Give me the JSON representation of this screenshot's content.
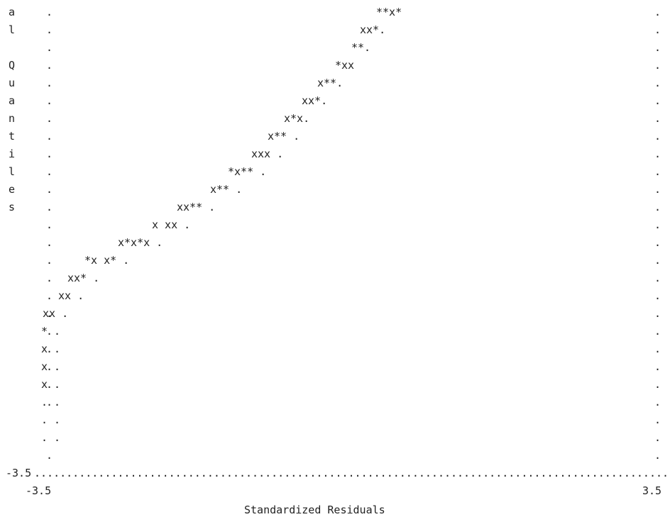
{
  "chart_data": {
    "type": "scatter",
    "style": "ascii-printer-plot",
    "xlabel": "Standardized Residuals",
    "ylabel": "al Quantiles",
    "x_ticks": [
      "-3.5",
      "3.5"
    ],
    "y_ticks": [
      "-3.5"
    ],
    "xlim": [
      -3.5,
      3.5
    ],
    "ylim": [
      -3.5,
      3.5
    ],
    "grid": false,
    "text_rows": [
      "**x*",
      "xx*.",
      "**.",
      "*xx",
      "x**.",
      "xx*.",
      "x*x.",
      "x** .",
      "xxx .",
      "*x** .",
      "x** .",
      "xx** .",
      "x xx .",
      "x*x*x .",
      "*x x* .",
      "xx* .",
      "xx .",
      "xx .",
      "* .",
      "x .",
      "x .",
      "x .",
      ". .",
      ". .",
      ". ."
    ],
    "series": [
      {
        "symbol": "x",
        "values": [
          [
            -2.95,
            -2.0
          ],
          [
            -2.95,
            -1.85
          ],
          [
            -2.95,
            -1.7
          ],
          [
            -2.92,
            -1.45
          ],
          [
            -2.86,
            -1.45
          ],
          [
            -2.65,
            -1.15
          ],
          [
            -2.57,
            -1.15
          ],
          [
            -2.55,
            -0.95
          ],
          [
            -2.48,
            -0.95
          ],
          [
            -2.38,
            -0.8
          ],
          [
            -2.15,
            -0.8
          ],
          [
            -2.08,
            -0.65
          ],
          [
            -1.93,
            -0.65
          ],
          [
            -1.8,
            -0.5
          ],
          [
            -1.6,
            -0.5
          ],
          [
            -1.5,
            -0.35
          ],
          [
            -1.45,
            -0.35
          ],
          [
            -1.28,
            -0.2
          ],
          [
            -1.15,
            -0.05
          ],
          [
            -1.0,
            0.1
          ],
          [
            -0.92,
            0.1
          ],
          [
            -0.86,
            0.1
          ],
          [
            -0.85,
            0.25
          ],
          [
            -0.7,
            0.4
          ],
          [
            -0.5,
            0.55
          ],
          [
            -0.45,
            0.7
          ],
          [
            -0.38,
            0.7
          ],
          [
            -0.3,
            1.0
          ],
          [
            -0.25,
            1.0
          ],
          [
            -0.14,
            1.15
          ],
          [
            -0.08,
            1.3
          ],
          [
            -0.02,
            1.3
          ],
          [
            0.05,
            1.3
          ],
          [
            0.13,
            1.42
          ]
        ]
      },
      {
        "symbol": "*",
        "values": [
          [
            -2.95,
            -1.6
          ],
          [
            -2.44,
            -0.95
          ],
          [
            -2.2,
            -0.8
          ],
          [
            -1.96,
            -0.8
          ],
          [
            -1.91,
            -0.65
          ],
          [
            -1.76,
            -0.65
          ],
          [
            -1.4,
            -0.35
          ],
          [
            -1.35,
            -0.35
          ],
          [
            -1.2,
            -0.2
          ],
          [
            -1.15,
            -0.2
          ],
          [
            -1.02,
            -0.05
          ],
          [
            -0.95,
            -0.05
          ],
          [
            -0.92,
            0.1
          ],
          [
            -0.79,
            0.25
          ],
          [
            -0.74,
            0.25
          ],
          [
            -0.5,
            0.4
          ],
          [
            -0.45,
            0.4
          ],
          [
            -0.34,
            0.55
          ],
          [
            -0.29,
            0.55
          ],
          [
            -0.15,
            0.85
          ],
          [
            -0.1,
            0.85
          ],
          [
            -0.03,
            1.0
          ],
          [
            0.0,
            1.15
          ],
          [
            0.05,
            1.15
          ],
          [
            0.1,
            1.3
          ],
          [
            0.15,
            1.42
          ],
          [
            0.2,
            1.42
          ],
          [
            0.3,
            1.45
          ]
        ]
      }
    ]
  }
}
